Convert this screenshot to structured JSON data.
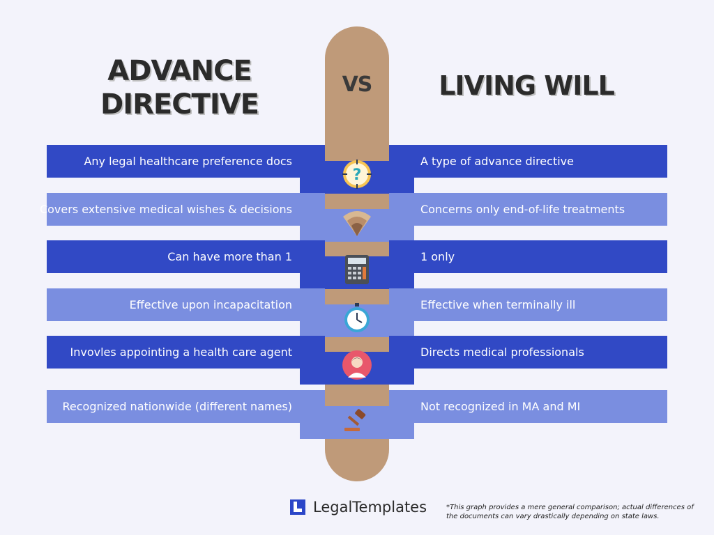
{
  "titles": {
    "left": "ADVANCE DIRECTIVE",
    "middle": "VS",
    "right": "LIVING WILL"
  },
  "rows": [
    {
      "left": "Any legal healthcare preference docs",
      "right": "A type of advance directive",
      "icon": "question-target-icon",
      "style": "dark"
    },
    {
      "left": "Covers extensive medical wishes & decisions",
      "right": "Concerns only end-of-life treatments",
      "icon": "signal-arc-icon",
      "style": "light"
    },
    {
      "left": "Can have more than 1",
      "right": "1 only",
      "icon": "calculator-icon",
      "style": "dark"
    },
    {
      "left": "Effective upon incapacitation",
      "right": "Effective when terminally ill",
      "icon": "stopwatch-icon",
      "style": "light"
    },
    {
      "left": "Invovles appointing a health care agent",
      "right": "Directs medical professionals",
      "icon": "person-avatar-icon",
      "style": "dark"
    },
    {
      "left": "Recognized nationwide (different names)",
      "right": "Not recognized in MA and MI",
      "icon": "gavel-icon",
      "style": "light"
    }
  ],
  "footer": {
    "brand": "LegalTemplates",
    "brand_icon": "legaltemplates-logo-icon",
    "disclaimer": "*This graph provides a mere general comparison; actual differences of the documents can vary drastically depending on state laws."
  },
  "colors": {
    "background": "#f3f3fb",
    "pill": "#bf9a79",
    "band_dark": "#3149c5",
    "band_light": "#7a8ee0",
    "title_text": "#2b2b2b"
  }
}
